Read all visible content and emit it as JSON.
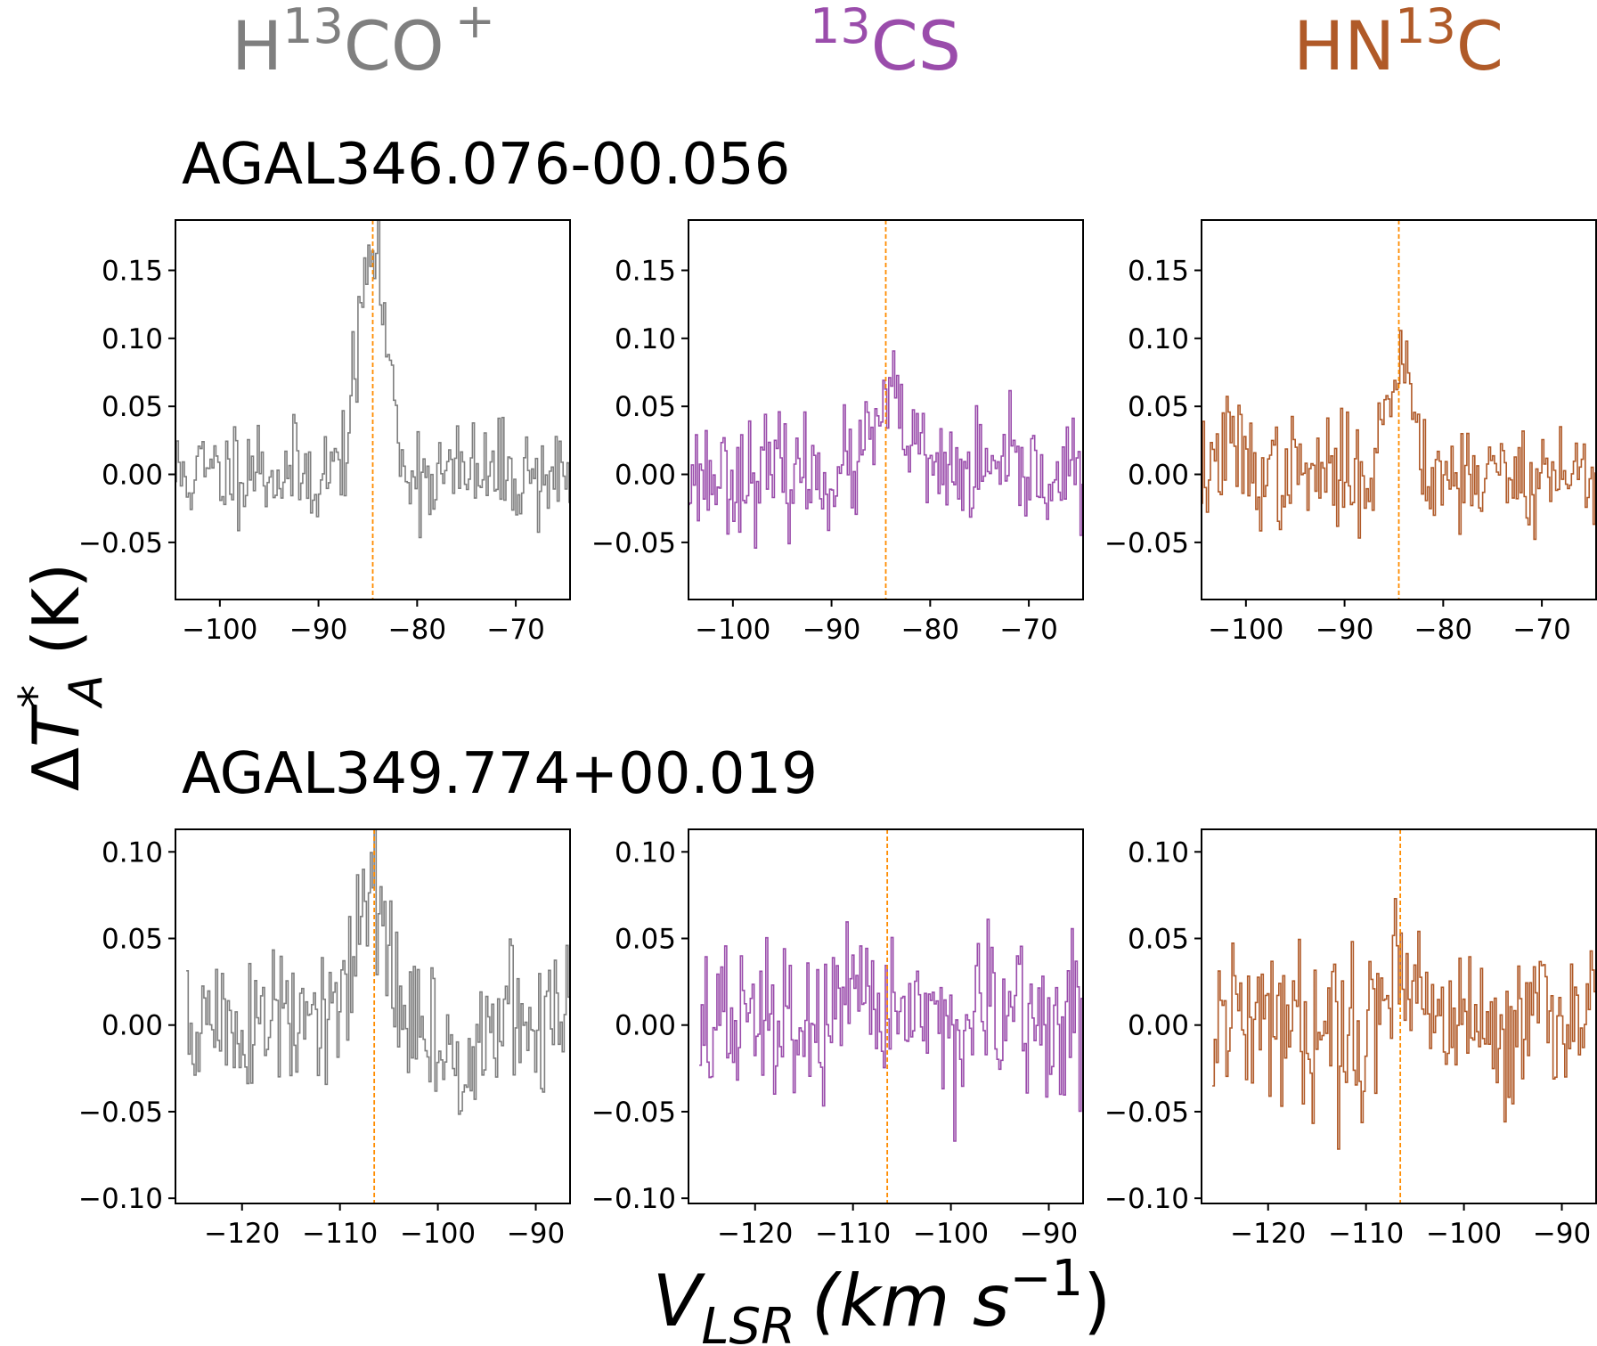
{
  "column_titles": [
    {
      "pre": "H",
      "sup": "13",
      "post": "CO",
      "sup2": "+",
      "color": "#7f7f7f"
    },
    {
      "pre": "",
      "sup": "13",
      "post": "CS",
      "sup2": "",
      "color": "#9a4cab"
    },
    {
      "pre": "HN",
      "sup": "13",
      "post": "C",
      "sup2": "",
      "color": "#b05a28"
    }
  ],
  "ylabel": {
    "delta": "Δ",
    "T": "T",
    "sup": "*",
    "sub": "A",
    "unit": "(K)"
  },
  "xlabel": {
    "V": "V",
    "sub": "LSR",
    "unit_pre": "(km s",
    "sup": "−1",
    "unit_post": ")"
  },
  "marker_color": "#ff8c00",
  "chart_data": [
    {
      "type": "line",
      "title": "AGAL346.076-00.056",
      "xlim": [
        -104.5,
        -64.5
      ],
      "ylim": [
        -0.092,
        0.187
      ],
      "xticks": [
        -100,
        -90,
        -80,
        -70
      ],
      "xtick_labels": [
        "−100",
        "−90",
        "−80",
        "−70"
      ],
      "yticks": [
        0.15,
        0.1,
        0.05,
        0.0,
        -0.05
      ],
      "ytick_labels": [
        "0.15",
        "0.10",
        "0.05",
        "0.00",
        "−0.05"
      ],
      "source_velocity": -84.5,
      "x_start": -104.5,
      "x_step": 0.2,
      "series": [
        {
          "name": "H13CO+",
          "color": "#7f7f7f",
          "peak_v": -84.5,
          "peak_amp": 0.165,
          "width": 1.4,
          "noise": 0.019,
          "end": -64.5,
          "seed": 11,
          "extra": [
            {
              "v": -97.0,
              "a": 0.01
            }
          ]
        },
        {
          "name": "13CS",
          "color": "#9a4cab",
          "peak_v": -84.0,
          "peak_amp": 0.05,
          "width": 1.7,
          "noise": 0.02,
          "end": -64.5,
          "seed": 23,
          "extra": []
        },
        {
          "name": "HN13C",
          "color": "#b05a28",
          "peak_v": -84.3,
          "peak_amp": 0.085,
          "width": 1.3,
          "noise": 0.02,
          "end": -64.5,
          "seed": 37,
          "extra": [
            {
              "v": -101.5,
              "a": 0.02
            }
          ]
        }
      ]
    },
    {
      "type": "line",
      "title": "AGAL349.774+00.019",
      "xlim": [
        -126.8,
        -86.5
      ],
      "ylim": [
        -0.103,
        0.113
      ],
      "xticks": [
        -120,
        -110,
        -100,
        -90
      ],
      "xtick_labels": [
        "−120",
        "−110",
        "−100",
        "−90"
      ],
      "yticks": [
        0.1,
        0.05,
        0.0,
        -0.05,
        -0.1
      ],
      "ytick_labels": [
        "0.10",
        "0.05",
        "0.00",
        "−0.05",
        "−0.10"
      ],
      "source_velocity": -106.5,
      "x_start": -125.6,
      "x_step": 0.2,
      "series": [
        {
          "name": "H13CO+",
          "color": "#7f7f7f",
          "peak_v": -106.8,
          "peak_amp": 0.085,
          "width": 1.3,
          "noise": 0.023,
          "end": -86.6,
          "seed": 51,
          "extra": [
            {
              "v": -99.0,
              "a": -0.025
            }
          ]
        },
        {
          "name": "13CS",
          "color": "#9a4cab",
          "peak_v": -106.0,
          "peak_amp": 0.015,
          "width": 2.0,
          "noise": 0.023,
          "end": -86.6,
          "seed": 67,
          "extra": []
        },
        {
          "name": "HN13C",
          "color": "#b05a28",
          "peak_v": -106.2,
          "peak_amp": 0.035,
          "width": 1.8,
          "noise": 0.023,
          "end": -86.6,
          "seed": 79,
          "extra": [
            {
              "v": -90.0,
              "a": 0.012
            }
          ]
        }
      ]
    }
  ]
}
